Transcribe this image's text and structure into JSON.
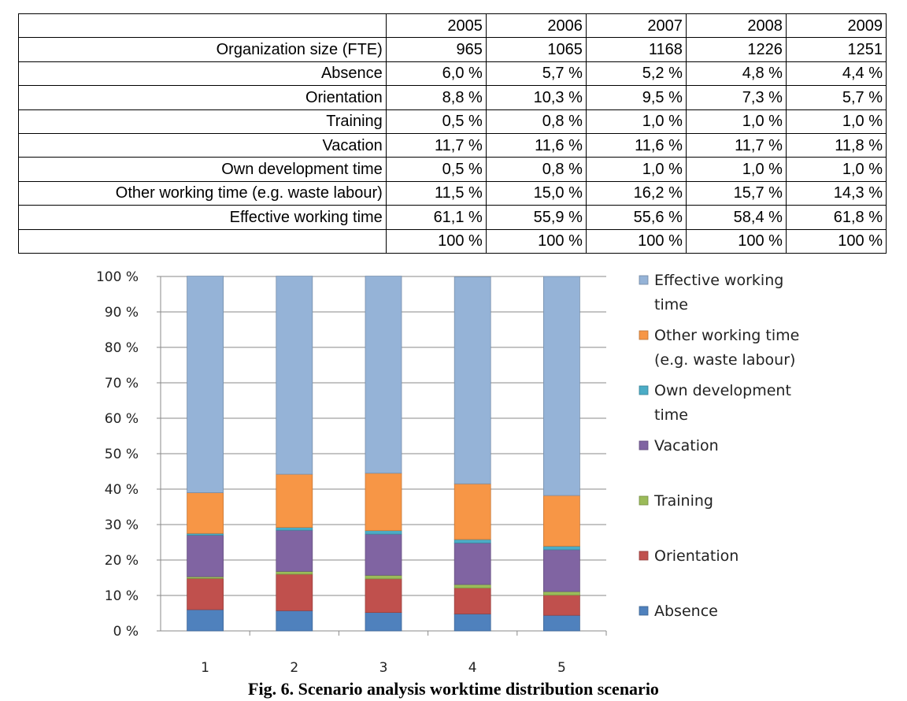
{
  "table": {
    "header": [
      "",
      "2005",
      "2006",
      "2007",
      "2008",
      "2009"
    ],
    "rows": [
      [
        "Organization size (FTE)",
        "965",
        "1065",
        "1168",
        "1226",
        "1251"
      ],
      [
        "Absence",
        "6,0 %",
        "5,7 %",
        "5,2 %",
        "4,8 %",
        "4,4 %"
      ],
      [
        "Orientation",
        "8,8 %",
        "10,3 %",
        "9,5 %",
        "7,3 %",
        "5,7 %"
      ],
      [
        "Training",
        "0,5 %",
        "0,8 %",
        "1,0 %",
        "1,0 %",
        "1,0 %"
      ],
      [
        "Vacation",
        "11,7 %",
        "11,6 %",
        "11,6 %",
        "11,7 %",
        "11,8 %"
      ],
      [
        "Own development time",
        "0,5 %",
        "0,8 %",
        "1,0 %",
        "1,0 %",
        "1,0 %"
      ],
      [
        "Other working time (e.g. waste labour)",
        "11,5 %",
        "15,0 %",
        "16,2 %",
        "15,7 %",
        "14,3 %"
      ],
      [
        "Effective working time",
        "61,1 %",
        "55,9 %",
        "55,6 %",
        "58,4 %",
        "61,8 %"
      ],
      [
        "",
        "100 %",
        "100 %",
        "100 %",
        "100 %",
        "100 %"
      ]
    ]
  },
  "chart_data": {
    "type": "bar",
    "stacked": true,
    "categories": [
      "1",
      "2",
      "3",
      "4",
      "5"
    ],
    "series": [
      {
        "name": "Absence",
        "values": [
          6.0,
          5.7,
          5.2,
          4.8,
          4.4
        ],
        "color": "#4F81BD"
      },
      {
        "name": "Orientation",
        "values": [
          8.8,
          10.3,
          9.5,
          7.3,
          5.7
        ],
        "color": "#C0504D"
      },
      {
        "name": "Training",
        "values": [
          0.5,
          0.8,
          1.0,
          1.0,
          1.0
        ],
        "color": "#9BBB59"
      },
      {
        "name": "Vacation",
        "values": [
          11.7,
          11.6,
          11.6,
          11.7,
          11.8
        ],
        "color": "#8064A2"
      },
      {
        "name": "Own development time",
        "values": [
          0.5,
          0.8,
          1.0,
          1.0,
          1.0
        ],
        "color": "#4BACC6"
      },
      {
        "name": "Other working time (e.g. waste labour)",
        "values": [
          11.5,
          15.0,
          16.2,
          15.7,
          14.3
        ],
        "color": "#F79646"
      },
      {
        "name": "Effective working time",
        "values": [
          61.1,
          55.9,
          55.6,
          58.4,
          61.8
        ],
        "color": "#95B3D7"
      }
    ],
    "yticks": [
      "0 %",
      "10 %",
      "20 %",
      "30 %",
      "40 %",
      "50 %",
      "60 %",
      "70 %",
      "80 %",
      "90 %",
      "100 %"
    ],
    "ylim": [
      0,
      100
    ],
    "legend": [
      {
        "lines": [
          "Effective working",
          "time"
        ],
        "series": "Effective working time"
      },
      {
        "lines": [
          "Other working  time",
          "(e.g. waste labour)"
        ],
        "series": "Other working time (e.g. waste labour)"
      },
      {
        "lines": [
          "Own development",
          "time"
        ],
        "series": "Own development time"
      },
      {
        "lines": [
          "Vacation"
        ],
        "series": "Vacation"
      },
      {
        "lines": [
          "Training"
        ],
        "series": "Training"
      },
      {
        "lines": [
          "Orientation"
        ],
        "series": "Orientation"
      },
      {
        "lines": [
          "Absence"
        ],
        "series": "Absence"
      }
    ],
    "legend_position": "right"
  },
  "caption": "Fig. 6. Scenario analysis worktime distribution scenario"
}
